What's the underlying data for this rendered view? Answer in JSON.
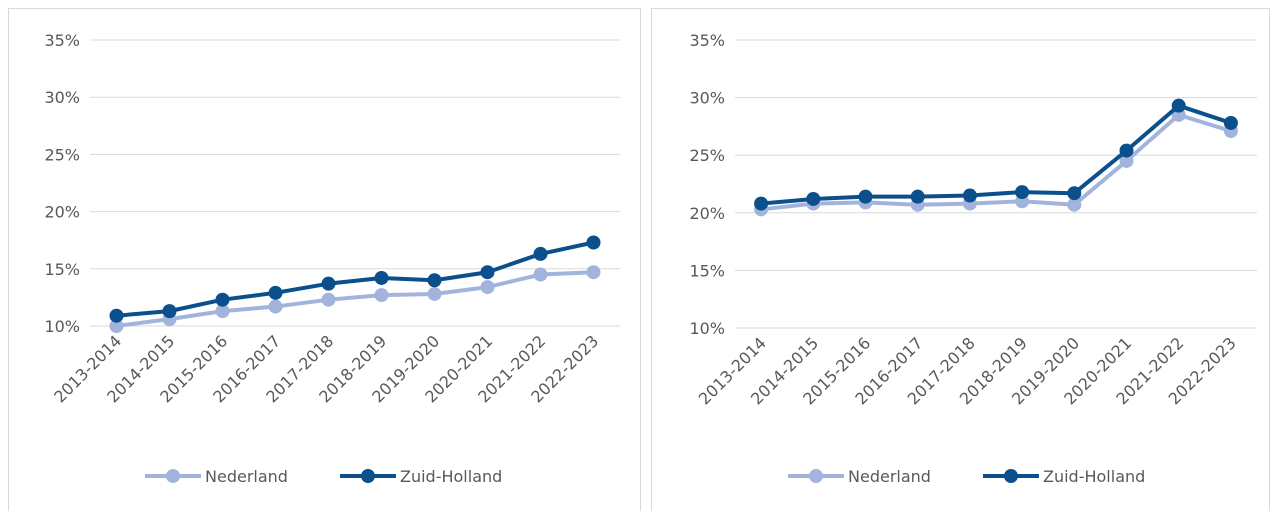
{
  "chart_data": [
    {
      "type": "line",
      "categories": [
        "2013-2014",
        "2014-2015",
        "2015-2016",
        "2016-2017",
        "2017-2018",
        "2018-2019",
        "2019-2020",
        "2020-2021",
        "2021-2022",
        "2022-2023"
      ],
      "series": [
        {
          "name": "Nederland",
          "color": "#a3b4dc",
          "values": [
            10.0,
            10.6,
            11.3,
            11.7,
            12.3,
            12.7,
            12.8,
            13.4,
            14.5,
            14.7
          ]
        },
        {
          "name": "Zuid-Holland",
          "color": "#0b4f8c",
          "values": [
            10.9,
            11.3,
            12.3,
            12.9,
            13.7,
            14.2,
            14.0,
            14.7,
            16.3,
            17.3
          ]
        }
      ],
      "ylim": [
        10,
        35
      ],
      "yticks": [
        {
          "value": 10,
          "label": "10%"
        },
        {
          "value": 15,
          "label": "15%"
        },
        {
          "value": 20,
          "label": "20%"
        },
        {
          "value": 25,
          "label": "25%"
        },
        {
          "value": 30,
          "label": "30%"
        },
        {
          "value": 35,
          "label": "35%"
        }
      ],
      "grid": true,
      "legend": "bottom"
    },
    {
      "type": "line",
      "categories": [
        "2013-2014",
        "2014-2015",
        "2015-2016",
        "2016-2017",
        "2017-2018",
        "2018-2019",
        "2019-2020",
        "2020-2021",
        "2021-2022",
        "2022-2023"
      ],
      "series": [
        {
          "name": "Nederland",
          "color": "#a3b4dc",
          "values": [
            20.3,
            20.8,
            20.9,
            20.7,
            20.8,
            21.0,
            20.7,
            24.5,
            28.5,
            27.1
          ]
        },
        {
          "name": "Zuid-Holland",
          "color": "#0b4f8c",
          "values": [
            20.8,
            21.2,
            21.4,
            21.4,
            21.5,
            21.8,
            21.7,
            25.4,
            29.3,
            27.8
          ]
        }
      ],
      "ylim": [
        10,
        35
      ],
      "yticks": [
        {
          "value": 10,
          "label": "10%"
        },
        {
          "value": 15,
          "label": "15%"
        },
        {
          "value": 20,
          "label": "20%"
        },
        {
          "value": 25,
          "label": "25%"
        },
        {
          "value": 30,
          "label": "30%"
        },
        {
          "value": 35,
          "label": "35%"
        }
      ],
      "grid": true,
      "legend": "bottom"
    }
  ]
}
